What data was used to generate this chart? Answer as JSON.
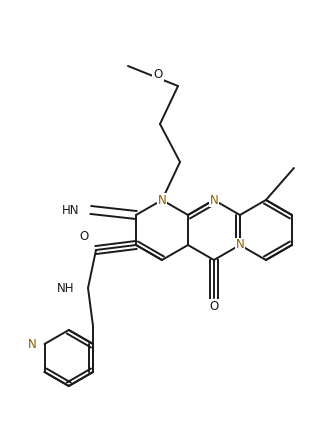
{
  "bg": "#ffffff",
  "bc": "#1a1a1a",
  "nc": "#8B6000",
  "lw": 1.4,
  "fs": 8.5,
  "figsize": [
    3.23,
    4.26
  ],
  "dpi": 100,
  "xlim": [
    0,
    323
  ],
  "ylim": [
    426,
    0
  ]
}
